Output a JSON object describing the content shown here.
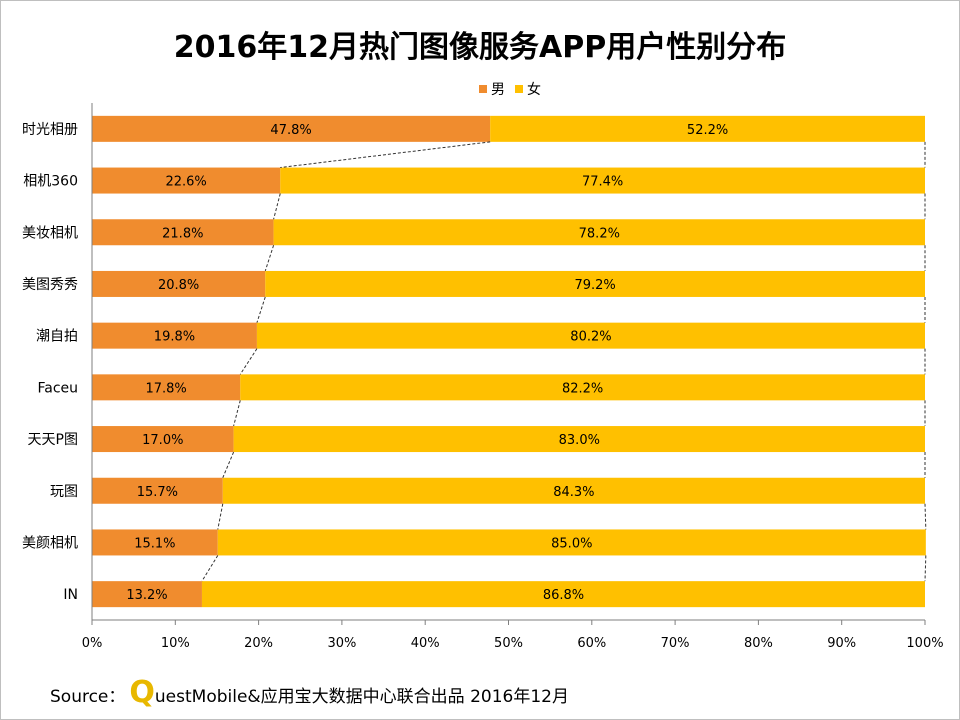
{
  "title": "2016年12月热门图像服务APP用户性别分布",
  "source": {
    "prefix": "Source：",
    "logo_letter": "Q",
    "text": "uestMobile&应用宝大数据中心联合出品 2016年12月"
  },
  "colors": {
    "male": "#f08c2e",
    "female": "#ffc000",
    "axis": "#7f7f7f",
    "connector": "#333333"
  },
  "chart_data": {
    "type": "bar",
    "orientation": "horizontal",
    "stacked": "percent",
    "categories": [
      "时光相册",
      "相机360",
      "美妆相机",
      "美图秀秀",
      "潮自拍",
      "Faceu",
      "天天P图",
      "玩图",
      "美颜相机",
      "IN"
    ],
    "series": [
      {
        "name": "男",
        "values": [
          47.8,
          22.6,
          21.8,
          20.8,
          19.8,
          17.8,
          17.0,
          15.7,
          15.1,
          13.2
        ],
        "labels": [
          "47.8%",
          "22.6%",
          "21.8%",
          "20.8%",
          "19.8%",
          "17.8%",
          "17.0%",
          "15.7%",
          "15.1%",
          "13.2%"
        ]
      },
      {
        "name": "女",
        "values": [
          52.2,
          77.4,
          78.2,
          79.2,
          80.2,
          82.2,
          83.0,
          84.3,
          85.0,
          86.8
        ],
        "labels": [
          "52.2%",
          "77.4%",
          "78.2%",
          "79.2%",
          "80.2%",
          "82.2%",
          "83.0%",
          "84.3%",
          "85.0%",
          "86.8%"
        ]
      }
    ],
    "xlim": [
      0,
      100
    ],
    "xticks": [
      "0%",
      "10%",
      "20%",
      "30%",
      "40%",
      "50%",
      "60%",
      "70%",
      "80%",
      "90%",
      "100%"
    ],
    "grid": false,
    "legend_position": "top",
    "series_lines": true
  }
}
